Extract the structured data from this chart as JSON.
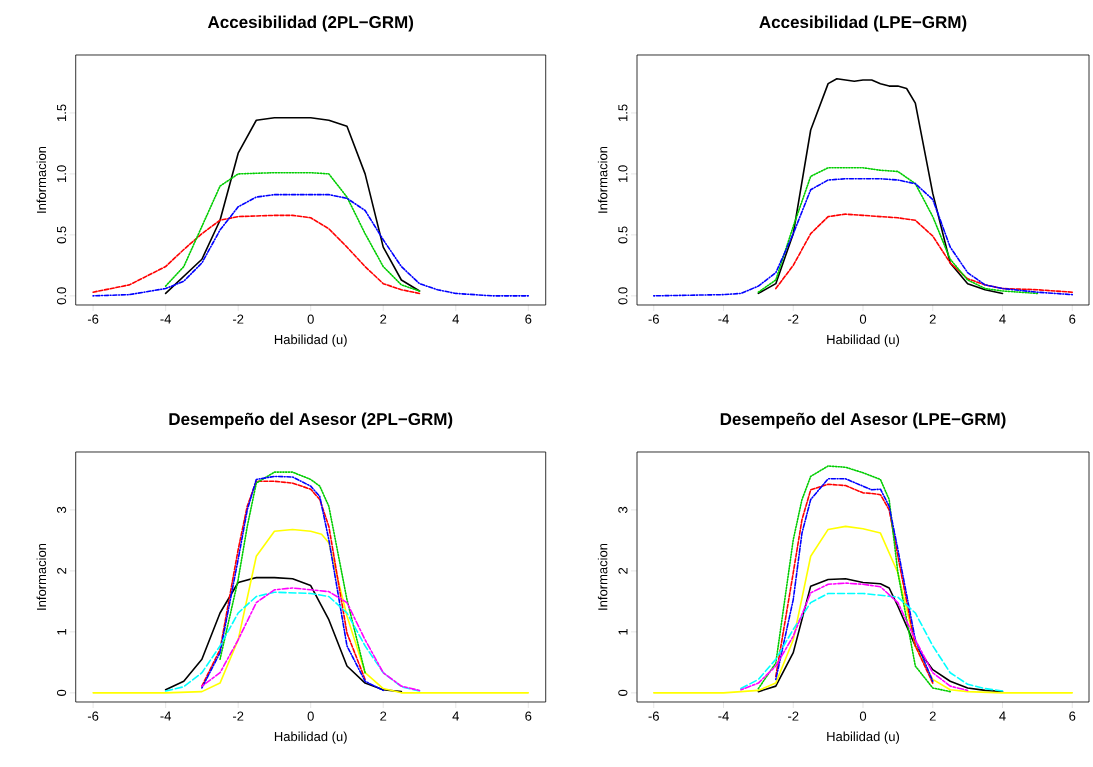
{
  "chart_data": [
    {
      "type": "line",
      "title": "Accesibilidad (2PL−GRM)",
      "xlabel": "Habilidad (u)",
      "ylabel": "Informacion",
      "xlim": [
        -6.48,
        6.48
      ],
      "ylim": [
        -0.075,
        1.975
      ],
      "xticks": [
        -6,
        -4,
        -2,
        0,
        2,
        4,
        6
      ],
      "yticks": [
        {
          "value": 0,
          "label": "0.0"
        },
        {
          "value": 0.5,
          "label": "0.5"
        },
        {
          "value": 1,
          "label": "1.0"
        },
        {
          "value": 1.5,
          "label": "1.5"
        }
      ],
      "series": [
        {
          "color": "#000000",
          "line_style": "solid",
          "x": [
            -4,
            -3,
            -2.5,
            -2,
            -1.5,
            -1,
            0,
            0.5,
            1,
            1.5,
            2,
            2.5,
            3
          ],
          "values": [
            0.02,
            0.3,
            0.62,
            1.17,
            1.44,
            1.46,
            1.46,
            1.44,
            1.39,
            1.0,
            0.4,
            0.13,
            0.04
          ]
        },
        {
          "color": "#ff0000",
          "line_style": "dashed",
          "x": [
            -6,
            -5,
            -4,
            -3.5,
            -3,
            -2.5,
            -2,
            -1,
            -0.5,
            0,
            0.5,
            1,
            1.5,
            2,
            2.5,
            3
          ],
          "values": [
            0.03,
            0.09,
            0.24,
            0.38,
            0.51,
            0.62,
            0.65,
            0.66,
            0.66,
            0.64,
            0.55,
            0.4,
            0.24,
            0.1,
            0.05,
            0.02
          ]
        },
        {
          "color": "#00cd00",
          "line_style": "dotted",
          "x": [
            -4,
            -3.5,
            -3,
            -2.5,
            -2,
            -1,
            0,
            0.5,
            1,
            1.5,
            2,
            2.5,
            3
          ],
          "values": [
            0.08,
            0.24,
            0.57,
            0.9,
            1.0,
            1.01,
            1.01,
            1.0,
            0.81,
            0.51,
            0.24,
            0.09,
            0.04
          ]
        },
        {
          "color": "#0000ff",
          "line_style": "dashdot",
          "x": [
            -6,
            -5,
            -4,
            -3.5,
            -3,
            -2.5,
            -2,
            -1.5,
            -1,
            0.5,
            1,
            1.5,
            2,
            2.5,
            3,
            3.5,
            4,
            5,
            6
          ],
          "values": [
            0,
            0.01,
            0.06,
            0.12,
            0.27,
            0.54,
            0.73,
            0.81,
            0.83,
            0.83,
            0.8,
            0.7,
            0.46,
            0.24,
            0.1,
            0.05,
            0.02,
            0,
            0
          ]
        }
      ]
    },
    {
      "type": "line",
      "title": "Accesibilidad (LPE−GRM)",
      "xlabel": "Habilidad (u)",
      "ylabel": "Informacion",
      "xlim": [
        -6.48,
        6.48
      ],
      "ylim": [
        -0.075,
        1.975
      ],
      "xticks": [
        -6,
        -4,
        -2,
        0,
        2,
        4,
        6
      ],
      "yticks": [
        {
          "value": 0,
          "label": "0.0"
        },
        {
          "value": 0.5,
          "label": "0.5"
        },
        {
          "value": 1,
          "label": "1.0"
        },
        {
          "value": 1.5,
          "label": "1.5"
        }
      ],
      "series": [
        {
          "color": "#000000",
          "line_style": "solid",
          "x": [
            -3,
            -2.5,
            -2,
            -1.5,
            -1,
            -0.75,
            -0.5,
            -0.25,
            0,
            0.25,
            0.5,
            0.75,
            1,
            1.25,
            1.5,
            2,
            2.5,
            3,
            3.5,
            4
          ],
          "values": [
            0.02,
            0.1,
            0.51,
            1.36,
            1.74,
            1.78,
            1.77,
            1.76,
            1.77,
            1.77,
            1.74,
            1.72,
            1.72,
            1.7,
            1.58,
            0.84,
            0.27,
            0.1,
            0.05,
            0.02
          ]
        },
        {
          "color": "#ff0000",
          "line_style": "dashed",
          "x": [
            -2.5,
            -2,
            -1.5,
            -1,
            -0.5,
            0,
            0.5,
            1,
            1.5,
            2,
            2.5,
            3,
            3.5,
            4,
            5,
            6
          ],
          "values": [
            0.06,
            0.25,
            0.51,
            0.65,
            0.67,
            0.66,
            0.65,
            0.64,
            0.62,
            0.49,
            0.27,
            0.14,
            0.09,
            0.06,
            0.05,
            0.03
          ]
        },
        {
          "color": "#00cd00",
          "line_style": "dotted",
          "x": [
            -3,
            -2.5,
            -2,
            -1.5,
            -1,
            0,
            0.5,
            1,
            1.5,
            2,
            2.5,
            3,
            3.5,
            4,
            5
          ],
          "values": [
            0.03,
            0.13,
            0.57,
            0.98,
            1.05,
            1.05,
            1.03,
            1.02,
            0.92,
            0.65,
            0.3,
            0.13,
            0.06,
            0.04,
            0.02
          ]
        },
        {
          "color": "#0000ff",
          "line_style": "dashdot",
          "x": [
            -6,
            -4,
            -3.5,
            -3,
            -2.5,
            -2,
            -1.5,
            -1,
            -0.5,
            0,
            0.5,
            1,
            1.5,
            2,
            2.5,
            3,
            3.5,
            4,
            5,
            6
          ],
          "values": [
            0,
            0.01,
            0.02,
            0.08,
            0.19,
            0.51,
            0.87,
            0.95,
            0.96,
            0.96,
            0.96,
            0.95,
            0.92,
            0.79,
            0.4,
            0.19,
            0.09,
            0.06,
            0.03,
            0.01
          ]
        }
      ]
    },
    {
      "type": "line",
      "title": "Desempeño del Asesor (2PL−GRM)",
      "xlabel": "Habilidad (u)",
      "ylabel": "Informacion",
      "xlim": [
        -6.48,
        6.48
      ],
      "ylim": [
        -0.15,
        3.95
      ],
      "xticks": [
        -6,
        -4,
        -2,
        0,
        2,
        4,
        6
      ],
      "yticks": [
        0,
        1,
        2,
        3
      ],
      "series": [
        {
          "color": "#000000",
          "line_style": "solid",
          "x": [
            -4,
            -3.5,
            -3,
            -2.5,
            -2,
            -1.5,
            -1,
            -0.5,
            0,
            0.5,
            1,
            1.5,
            2,
            2.5
          ],
          "values": [
            0.05,
            0.19,
            0.55,
            1.31,
            1.81,
            1.89,
            1.89,
            1.87,
            1.76,
            1.2,
            0.44,
            0.16,
            0.05,
            0.02
          ]
        },
        {
          "color": "#ff0000",
          "line_style": "dashed",
          "x": [
            -3,
            -2.5,
            -2,
            -1.75,
            -1.5,
            -1,
            -0.5,
            0,
            0.25,
            0.5,
            1,
            1.5
          ],
          "values": [
            0.11,
            0.71,
            2.35,
            3.06,
            3.47,
            3.47,
            3.44,
            3.34,
            3.17,
            2.73,
            0.98,
            0.22
          ]
        },
        {
          "color": "#00cd00",
          "line_style": "dotted",
          "x": [
            -2.5,
            -2,
            -1.75,
            -1.5,
            -1,
            -0.5,
            0,
            0.25,
            0.5,
            1,
            1.5
          ],
          "values": [
            0.55,
            1.86,
            2.73,
            3.44,
            3.62,
            3.62,
            3.5,
            3.39,
            3.06,
            1.53,
            0.33
          ]
        },
        {
          "color": "#0000ff",
          "line_style": "dashdot",
          "x": [
            -3,
            -2.5,
            -2,
            -1.75,
            -1.5,
            -1,
            -0.5,
            0,
            0.25,
            0.5,
            1,
            1.5,
            2
          ],
          "values": [
            0.08,
            0.66,
            2.19,
            3.0,
            3.5,
            3.55,
            3.54,
            3.39,
            3.22,
            2.51,
            0.77,
            0.19,
            0.04
          ]
        },
        {
          "color": "#00ffff",
          "line_style": "longdash",
          "x": [
            -4,
            -3.5,
            -3,
            -2.5,
            -2,
            -1.5,
            -1,
            0,
            0.5,
            1,
            1.5,
            2,
            2.5,
            3
          ],
          "values": [
            0.03,
            0.1,
            0.33,
            0.77,
            1.31,
            1.58,
            1.65,
            1.63,
            1.58,
            1.31,
            0.77,
            0.33,
            0.1,
            0.03
          ]
        },
        {
          "color": "#ff00ff",
          "line_style": "twodash",
          "x": [
            -3,
            -2.5,
            -2,
            -1.5,
            -1,
            -0.5,
            0,
            0.5,
            1,
            1.5,
            2,
            2.5,
            3
          ],
          "values": [
            0.11,
            0.33,
            0.87,
            1.48,
            1.69,
            1.72,
            1.69,
            1.66,
            1.48,
            0.87,
            0.33,
            0.11,
            0.04
          ]
        },
        {
          "color": "#ffff00",
          "line_style": "solid",
          "x": [
            -6,
            -4,
            -3,
            -2.5,
            -2,
            -1.5,
            -1,
            -0.5,
            0,
            0.3,
            0.5,
            1,
            1.5,
            2,
            2.5,
            3,
            6
          ],
          "values": [
            0,
            0,
            0.02,
            0.16,
            0.87,
            2.24,
            2.65,
            2.68,
            2.65,
            2.6,
            2.46,
            1.26,
            0.33,
            0.07,
            0,
            0,
            0
          ]
        }
      ]
    },
    {
      "type": "line",
      "title": "Desempeño del Asesor (LPE−GRM)",
      "xlabel": "Habilidad (u)",
      "ylabel": "Informacion",
      "xlim": [
        -6.48,
        6.48
      ],
      "ylim": [
        -0.15,
        3.95
      ],
      "xticks": [
        -6,
        -4,
        -2,
        0,
        2,
        4,
        6
      ],
      "yticks": [
        0,
        1,
        2,
        3
      ],
      "series": [
        {
          "color": "#000000",
          "line_style": "solid",
          "x": [
            -3,
            -2.5,
            -2,
            -1.5,
            -1,
            -0.5,
            0,
            0.5,
            0.75,
            1,
            1.5,
            2,
            2.5,
            3,
            3.5,
            4
          ],
          "values": [
            0.02,
            0.11,
            0.66,
            1.75,
            1.86,
            1.87,
            1.81,
            1.79,
            1.72,
            1.42,
            0.77,
            0.38,
            0.19,
            0.08,
            0.04,
            0.02
          ]
        },
        {
          "color": "#ff0000",
          "line_style": "dashed",
          "x": [
            -2.5,
            -2,
            -1.75,
            -1.5,
            -1,
            -0.5,
            0,
            0.25,
            0.5,
            0.75,
            1,
            1.5,
            2
          ],
          "values": [
            0.27,
            1.97,
            2.84,
            3.33,
            3.42,
            3.4,
            3.28,
            3.27,
            3.25,
            3.0,
            2.24,
            0.77,
            0.16
          ]
        },
        {
          "color": "#00cd00",
          "line_style": "dotted",
          "x": [
            -3,
            -2.5,
            -2,
            -1.75,
            -1.5,
            -1,
            -0.5,
            0,
            0.5,
            0.75,
            1,
            1.5,
            2,
            2.5
          ],
          "values": [
            0.07,
            0.49,
            2.51,
            3.17,
            3.55,
            3.72,
            3.7,
            3.61,
            3.5,
            3.17,
            1.97,
            0.44,
            0.08,
            0.02
          ]
        },
        {
          "color": "#0000ff",
          "line_style": "dashdot",
          "x": [
            -2.5,
            -2,
            -1.75,
            -1.5,
            -1,
            -0.5,
            0,
            0.25,
            0.5,
            0.75,
            1,
            1.5,
            2
          ],
          "values": [
            0.22,
            1.53,
            2.62,
            3.17,
            3.51,
            3.51,
            3.39,
            3.33,
            3.34,
            3.06,
            2.35,
            0.87,
            0.19
          ]
        },
        {
          "color": "#00ffff",
          "line_style": "longdash",
          "x": [
            -3.5,
            -3,
            -2.5,
            -2,
            -1.5,
            -1,
            0,
            0.5,
            1,
            1.5,
            2,
            2.5,
            3,
            3.5,
            4
          ],
          "values": [
            0.07,
            0.22,
            0.55,
            1.04,
            1.48,
            1.63,
            1.63,
            1.6,
            1.57,
            1.31,
            0.77,
            0.33,
            0.14,
            0.07,
            0.03
          ]
        },
        {
          "color": "#ff00ff",
          "line_style": "twodash",
          "x": [
            -3.5,
            -3,
            -2.5,
            -2,
            -1.5,
            -1,
            -0.5,
            0,
            0.5,
            1,
            1.5,
            2,
            2.5,
            3
          ],
          "values": [
            0.05,
            0.16,
            0.44,
            0.93,
            1.64,
            1.78,
            1.8,
            1.78,
            1.74,
            1.48,
            0.87,
            0.33,
            0.11,
            0.04
          ]
        },
        {
          "color": "#ffff00",
          "line_style": "solid",
          "x": [
            -6,
            -4,
            -3,
            -2.5,
            -2,
            -1.5,
            -1,
            -0.5,
            0,
            0.5,
            1,
            1.5,
            2,
            2.5,
            3,
            4,
            6
          ],
          "values": [
            0,
            0,
            0.04,
            0.16,
            0.87,
            2.24,
            2.68,
            2.73,
            2.69,
            2.62,
            1.97,
            0.77,
            0.22,
            0.05,
            0.02,
            0,
            0
          ]
        }
      ]
    }
  ]
}
